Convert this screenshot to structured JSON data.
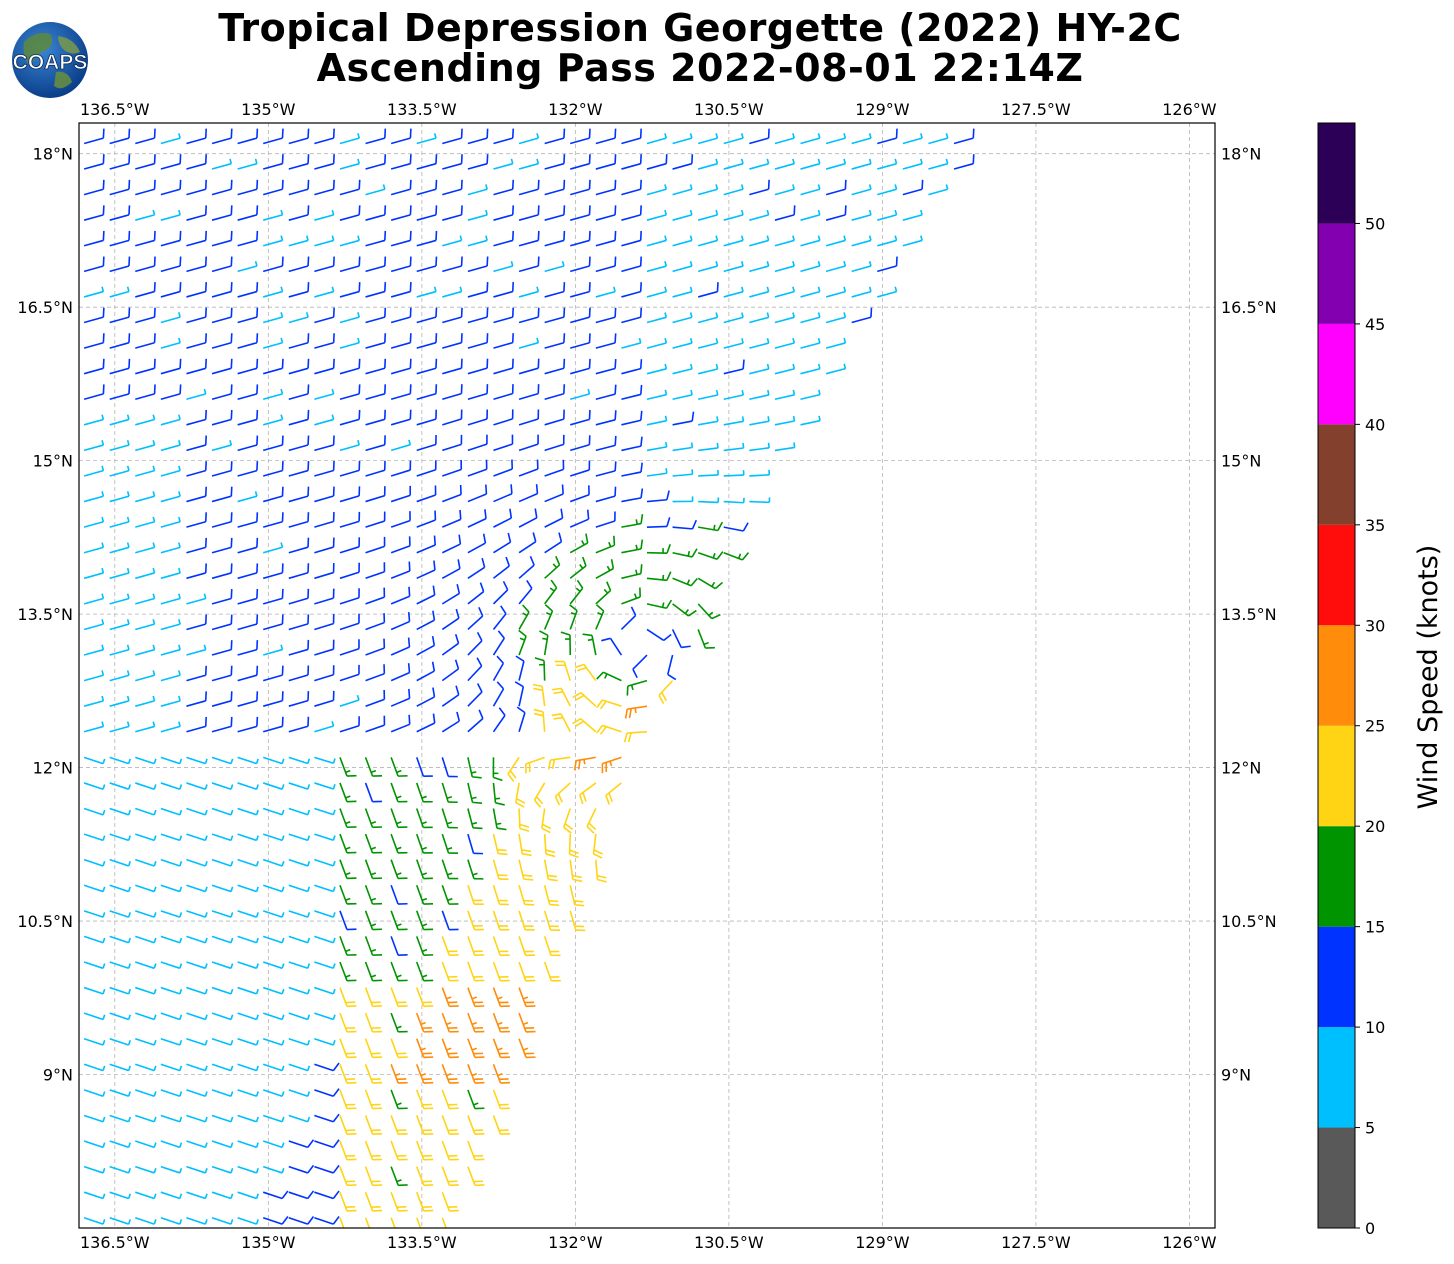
{
  "title": {
    "line1": "Tropical Depression Georgette (2022) HY-2C",
    "line2": "Ascending Pass 2022-08-01 22:14Z"
  },
  "logo": {
    "text": "COAPS",
    "icon": "globe-logo-icon"
  },
  "map": {
    "lon_range": [
      -136.85,
      -125.75
    ],
    "lat_range": [
      7.5,
      18.3
    ],
    "lon_ticks": [
      "136.5°W",
      "135°W",
      "133.5°W",
      "132°W",
      "130.5°W",
      "129°W",
      "127.5°W",
      "126°W"
    ],
    "lat_ticks": [
      "18°N",
      "16.5°N",
      "15°N",
      "13.5°N",
      "12°N",
      "10.5°N",
      "9°N"
    ],
    "grid": true,
    "swath_east_edge": [
      [
        -133.2,
        7.5
      ],
      [
        -132.5,
        9.4
      ],
      [
        -131.2,
        12.5
      ],
      [
        -130.1,
        14.8
      ],
      [
        -128.0,
        18.3
      ]
    ],
    "storm_center": [
      -131.4,
      13.2
    ]
  },
  "colorbar": {
    "label": "Wind Speed (knots)",
    "ticks": [
      "0",
      "5",
      "10",
      "15",
      "20",
      "25",
      "30",
      "35",
      "40",
      "45",
      "50"
    ],
    "bins": [
      {
        "min": 0,
        "max": 5,
        "color": "#595959"
      },
      {
        "min": 5,
        "max": 10,
        "color": "#00bfff"
      },
      {
        "min": 10,
        "max": 15,
        "color": "#0033ff"
      },
      {
        "min": 15,
        "max": 20,
        "color": "#009400"
      },
      {
        "min": 20,
        "max": 25,
        "color": "#ffd414"
      },
      {
        "min": 25,
        "max": 30,
        "color": "#ff8c0a"
      },
      {
        "min": 30,
        "max": 35,
        "color": "#ff0d0d"
      },
      {
        "min": 35,
        "max": 40,
        "color": "#82402d"
      },
      {
        "min": 40,
        "max": 45,
        "color": "#ff00ff"
      },
      {
        "min": 45,
        "max": 50,
        "color": "#8200b0"
      },
      {
        "min": 50,
        "max": 55,
        "color": "#2d0057"
      }
    ]
  }
}
